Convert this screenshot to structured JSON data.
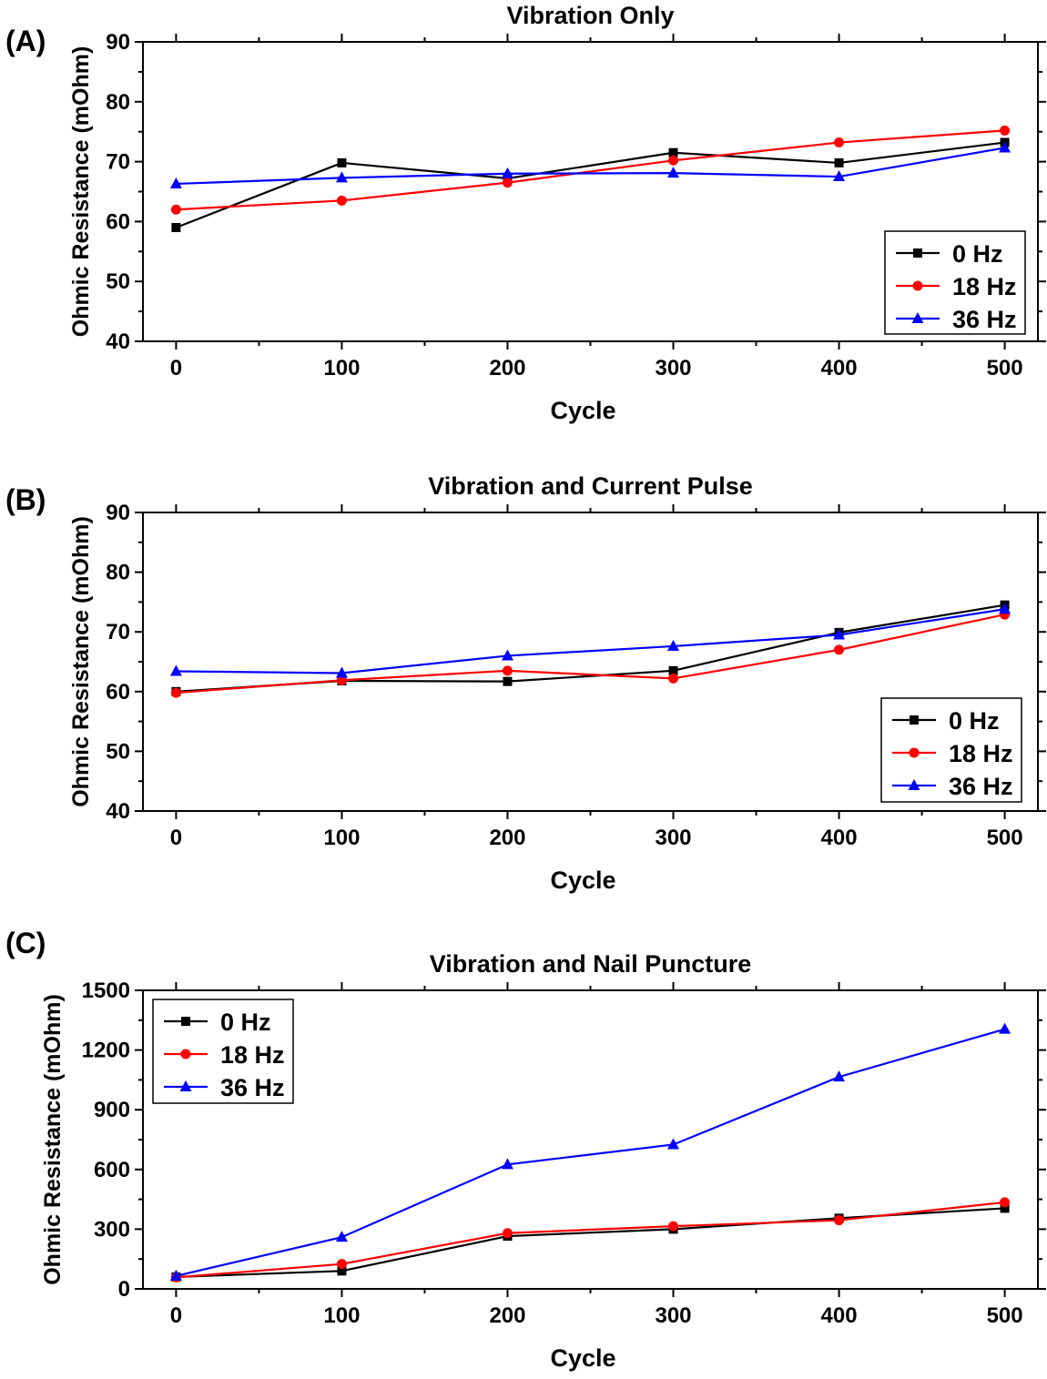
{
  "chart_data": [
    {
      "type": "line",
      "panel": "(A)",
      "title": "Vibration Only",
      "xlabel": "Cycle",
      "ylabel": "Ohmic Resistance (mOhm)",
      "x": [
        0,
        100,
        200,
        300,
        400,
        500
      ],
      "xlim": [
        -20,
        520
      ],
      "ylim": [
        40,
        90
      ],
      "yticks": [
        40,
        50,
        60,
        70,
        80,
        90
      ],
      "yminor": 5,
      "xticks": [
        0,
        100,
        200,
        300,
        400,
        500
      ],
      "legend_position": "bottom-right",
      "series": [
        {
          "name": "0 Hz",
          "color": "#000000",
          "marker": "square",
          "values": [
            59.0,
            69.8,
            67.2,
            71.5,
            69.8,
            73.2
          ]
        },
        {
          "name": "18 Hz",
          "color": "#ff0000",
          "marker": "circle",
          "values": [
            62.0,
            63.5,
            66.5,
            70.2,
            73.2,
            75.2
          ]
        },
        {
          "name": "36 Hz",
          "color": "#0000ff",
          "marker": "triangle",
          "values": [
            66.3,
            67.3,
            68.0,
            68.1,
            67.5,
            72.3
          ]
        }
      ]
    },
    {
      "type": "line",
      "panel": "(B)",
      "title": "Vibration and Current Pulse",
      "xlabel": "Cycle",
      "ylabel": "Ohmic Resistance (mOhm)",
      "x": [
        0,
        100,
        200,
        300,
        400,
        500
      ],
      "xlim": [
        -20,
        520
      ],
      "ylim": [
        40,
        90
      ],
      "yticks": [
        40,
        50,
        60,
        70,
        80,
        90
      ],
      "yminor": 5,
      "xticks": [
        0,
        100,
        200,
        300,
        400,
        500
      ],
      "legend_position": "bottom-right",
      "series": [
        {
          "name": "0 Hz",
          "color": "#000000",
          "marker": "square",
          "values": [
            60.0,
            61.8,
            61.7,
            63.5,
            69.9,
            74.5
          ]
        },
        {
          "name": "18 Hz",
          "color": "#ff0000",
          "marker": "circle",
          "values": [
            59.8,
            61.9,
            63.5,
            62.2,
            67.0,
            72.9
          ]
        },
        {
          "name": "36 Hz",
          "color": "#0000ff",
          "marker": "triangle",
          "values": [
            63.4,
            63.1,
            66.0,
            67.6,
            69.5,
            73.8
          ]
        }
      ]
    },
    {
      "type": "line",
      "panel": "(C)",
      "title": "Vibration and Nail Puncture",
      "xlabel": "Cycle",
      "ylabel": "Ohmic Resistance (mOhm)",
      "x": [
        0,
        100,
        200,
        300,
        400,
        500
      ],
      "xlim": [
        -20,
        520
      ],
      "ylim": [
        0,
        1500
      ],
      "yticks": [
        0,
        300,
        600,
        900,
        1200,
        1500
      ],
      "yminor": 150,
      "xticks": [
        0,
        100,
        200,
        300,
        400,
        500
      ],
      "legend_position": "top-left",
      "series": [
        {
          "name": "0 Hz",
          "color": "#000000",
          "marker": "square",
          "values": [
            60,
            90,
            265,
            300,
            355,
            405
          ]
        },
        {
          "name": "18 Hz",
          "color": "#ff0000",
          "marker": "circle",
          "values": [
            58,
            125,
            280,
            315,
            345,
            435
          ]
        },
        {
          "name": "36 Hz",
          "color": "#0000ff",
          "marker": "triangle",
          "values": [
            65,
            260,
            625,
            725,
            1065,
            1305
          ]
        }
      ]
    }
  ]
}
